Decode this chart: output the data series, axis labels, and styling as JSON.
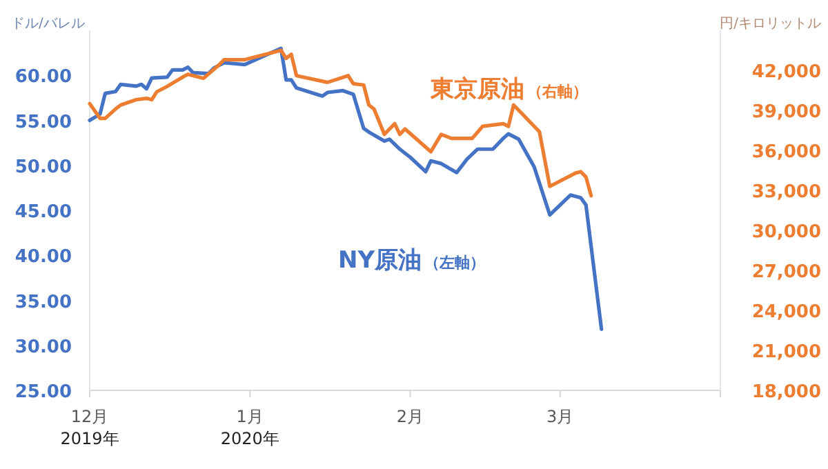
{
  "chart_data": {
    "type": "line",
    "ylabel": "ドル/バレル",
    "y2label": "円/キロリットル",
    "xlim": [
      "2019-12-01",
      "2020-04-01"
    ],
    "xticks": [
      {
        "value": "2019-12-01",
        "label": "12月\n2019年"
      },
      {
        "value": "2020-01-01",
        "label": "1月\n2020年"
      },
      {
        "value": "2020-02-01",
        "label": "2月"
      },
      {
        "value": "2020-03-01",
        "label": "3月"
      },
      {
        "value": "2020-04-01",
        "label": null
      }
    ],
    "ylim": [
      25,
      65
    ],
    "yticks": [
      {
        "value": 25,
        "label": "25.00"
      },
      {
        "value": 30,
        "label": "30.00"
      },
      {
        "value": 35,
        "label": "35.00"
      },
      {
        "value": 40,
        "label": "40.00"
      },
      {
        "value": 45,
        "label": "45.00"
      },
      {
        "value": 50,
        "label": "50.00"
      },
      {
        "value": 55,
        "label": "55.00"
      },
      {
        "value": 60,
        "label": "60.00"
      }
    ],
    "y2lim": [
      18000,
      45000
    ],
    "y2ticks": [
      {
        "value": 18000,
        "label": "18,000"
      },
      {
        "value": 21000,
        "label": "21,000"
      },
      {
        "value": 24000,
        "label": "24,000"
      },
      {
        "value": 27000,
        "label": "27,000"
      },
      {
        "value": 30000,
        "label": "30,000"
      },
      {
        "value": 33000,
        "label": "33,000"
      },
      {
        "value": 36000,
        "label": "36,000"
      },
      {
        "value": 39000,
        "label": "39,000"
      },
      {
        "value": 42000,
        "label": "42,000"
      }
    ],
    "grid": false,
    "legend": false,
    "marker": "none",
    "line_style": "solid",
    "series": [
      {
        "name": "NY原油（左軸）",
        "color": "#4472c4",
        "axis": "y",
        "x": [
          "2019-12-01",
          "2019-12-03",
          "2019-12-04",
          "2019-12-06",
          "2019-12-07",
          "2019-12-10",
          "2019-12-11",
          "2019-12-12",
          "2019-12-13",
          "2019-12-16",
          "2019-12-17",
          "2019-12-19",
          "2019-12-20",
          "2019-12-21",
          "2019-12-24",
          "2019-12-25",
          "2019-12-27",
          "2019-12-31",
          "2020-01-07",
          "2020-01-08",
          "2020-01-09",
          "2020-01-10",
          "2020-01-15",
          "2020-01-16",
          "2020-01-19",
          "2020-01-21",
          "2020-01-23",
          "2020-01-24",
          "2020-01-27",
          "2020-01-28",
          "2020-01-30",
          "2020-02-01",
          "2020-02-04",
          "2020-02-05",
          "2020-02-07",
          "2020-02-10",
          "2020-02-12",
          "2020-02-14",
          "2020-02-17",
          "2020-02-19",
          "2020-02-20",
          "2020-02-22",
          "2020-02-25",
          "2020-02-28",
          "2020-03-03",
          "2020-03-05",
          "2020-03-06",
          "2020-03-09"
        ],
        "values": [
          55.0,
          55.7,
          58.0,
          58.2,
          59.0,
          58.8,
          59.0,
          58.5,
          59.7,
          59.8,
          60.6,
          60.6,
          60.9,
          60.3,
          60.2,
          60.8,
          61.4,
          61.2,
          63.0,
          59.5,
          59.5,
          58.6,
          57.7,
          58.1,
          58.3,
          57.9,
          54.1,
          53.7,
          52.7,
          52.9,
          51.8,
          50.9,
          49.3,
          50.5,
          50.2,
          49.2,
          50.7,
          51.8,
          51.8,
          53.0,
          53.5,
          52.9,
          49.8,
          44.5,
          46.7,
          46.4,
          45.6,
          31.8
        ]
      },
      {
        "name": "東京原油（右軸）",
        "color": "#ed7d31",
        "axis": "y2",
        "x": [
          "2019-12-01",
          "2019-12-03",
          "2019-12-04",
          "2019-12-06",
          "2019-12-07",
          "2019-12-10",
          "2019-12-12",
          "2019-12-13",
          "2019-12-14",
          "2019-12-16",
          "2019-12-19",
          "2019-12-20",
          "2019-12-23",
          "2019-12-26",
          "2019-12-27",
          "2019-12-31",
          "2020-01-07",
          "2020-01-08",
          "2020-01-09",
          "2020-01-10",
          "2020-01-16",
          "2020-01-20",
          "2020-01-21",
          "2020-01-23",
          "2020-01-24",
          "2020-01-25",
          "2020-01-27",
          "2020-01-29",
          "2020-01-30",
          "2020-01-31",
          "2020-02-05",
          "2020-02-07",
          "2020-02-09",
          "2020-02-13",
          "2020-02-15",
          "2020-02-19",
          "2020-02-20",
          "2020-02-21",
          "2020-02-26",
          "2020-02-28",
          "2020-03-04",
          "2020-03-05",
          "2020-03-06",
          "2020-03-07"
        ],
        "values": [
          39500,
          38400,
          38400,
          39100,
          39400,
          39800,
          39900,
          39800,
          40400,
          40800,
          41500,
          41700,
          41400,
          42400,
          42800,
          42800,
          43500,
          42900,
          43200,
          41600,
          41100,
          41600,
          41000,
          40900,
          39400,
          39100,
          37200,
          38000,
          37200,
          37600,
          35900,
          37200,
          36900,
          36900,
          37800,
          38000,
          37800,
          39400,
          37400,
          33300,
          34300,
          34400,
          34000,
          32600
        ]
      }
    ]
  }
}
